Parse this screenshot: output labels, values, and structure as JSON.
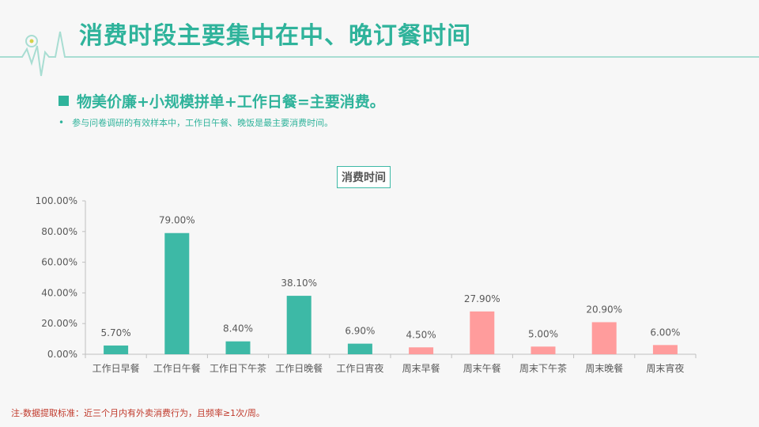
{
  "header": {
    "title": "消费时段主要集中在中、晚订餐时间"
  },
  "bullets": {
    "main": "物美价廉+小规模拼单+工作日餐=主要消费。",
    "sub": "参与问卷调研的有效样本中，工作日午餐、晚饭是最主要消费时间。",
    "sub_marker": "•"
  },
  "footnote": "注-数据提取标准：近三个月内有外卖消费行为，且频率≥1次/周。",
  "colors": {
    "accent": "#2fb39b",
    "weekday": "#3db9a6",
    "weekend": "#ff9c9c"
  },
  "icons": {
    "bullet": "square-bullet-icon",
    "header_decoration": "heartbeat-line-icon"
  },
  "chart_data": {
    "type": "bar",
    "title": "消费时间",
    "categories": [
      "工作日早餐",
      "工作日午餐",
      "工作日下午茶",
      "工作日晚餐",
      "工作日宵夜",
      "周末早餐",
      "周末午餐",
      "周末下午茶",
      "周末晚餐",
      "周末宵夜"
    ],
    "values": [
      5.7,
      79.0,
      8.4,
      38.1,
      6.9,
      4.5,
      27.9,
      5.0,
      20.9,
      6.0
    ],
    "value_labels": [
      "5.70%",
      "79.00%",
      "8.40%",
      "38.10%",
      "6.90%",
      "4.50%",
      "27.90%",
      "5.00%",
      "20.90%",
      "6.00%"
    ],
    "ylim": [
      0,
      100
    ],
    "yticks": [
      0,
      20,
      40,
      60,
      80,
      100
    ],
    "ytick_labels": [
      "0.00%",
      "20.00%",
      "40.00%",
      "60.00%",
      "80.00%",
      "100.00%"
    ],
    "bar_colors": [
      "#3db9a6",
      "#3db9a6",
      "#3db9a6",
      "#3db9a6",
      "#3db9a6",
      "#ff9c9c",
      "#ff9c9c",
      "#ff9c9c",
      "#ff9c9c",
      "#ff9c9c"
    ],
    "xlabel": "",
    "ylabel": "",
    "grid": false
  }
}
